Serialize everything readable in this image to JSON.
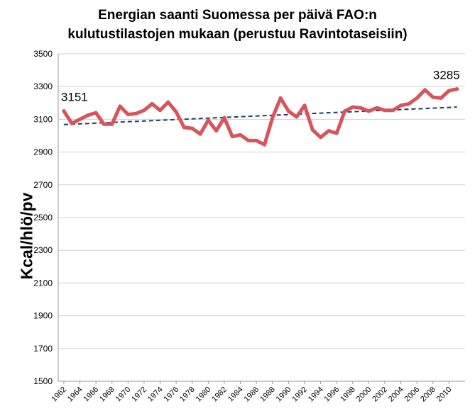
{
  "chart_data": {
    "type": "line",
    "title_lines": [
      "Energian saanti Suomessa per päivä FAO:n",
      "kulutustilastojen mukaan (perustuu Ravintotaseisiin)"
    ],
    "xlabel": "",
    "ylabel": "Kcal/hlö/pv",
    "ylim": [
      1500,
      3500
    ],
    "yticks": [
      1500,
      1700,
      1900,
      2100,
      2300,
      2500,
      2700,
      2900,
      3100,
      3300,
      3500
    ],
    "xticks": [
      1962,
      1964,
      1966,
      1968,
      1970,
      1972,
      1974,
      1976,
      1978,
      1980,
      1982,
      1984,
      1986,
      1988,
      1990,
      1992,
      1994,
      1996,
      1998,
      2000,
      2002,
      2004,
      2006,
      2008,
      2010
    ],
    "grid": true,
    "legend": "none",
    "series": [
      {
        "color": "#d9535c",
        "x": [
          1962,
          1963,
          1964,
          1965,
          1966,
          1967,
          1968,
          1969,
          1970,
          1971,
          1972,
          1973,
          1974,
          1975,
          1976,
          1977,
          1978,
          1979,
          1980,
          1981,
          1982,
          1983,
          1984,
          1985,
          1986,
          1987,
          1988,
          1989,
          1990,
          1991,
          1992,
          1993,
          1994,
          1995,
          1996,
          1997,
          1998,
          1999,
          2000,
          2001,
          2002,
          2003,
          2004,
          2005,
          2006,
          2007,
          2008,
          2009,
          2010,
          2011
        ],
        "values": [
          3151,
          3075,
          3100,
          3125,
          3140,
          3070,
          3070,
          3180,
          3130,
          3135,
          3155,
          3195,
          3155,
          3205,
          3145,
          3050,
          3045,
          3010,
          3095,
          3030,
          3110,
          2995,
          3005,
          2970,
          2970,
          2945,
          3110,
          3230,
          3150,
          3115,
          3185,
          3035,
          2990,
          3030,
          3015,
          3150,
          3175,
          3170,
          3150,
          3170,
          3155,
          3155,
          3185,
          3195,
          3230,
          3280,
          3235,
          3230,
          3275,
          3285
        ]
      }
    ],
    "trendline": {
      "style": "dashed",
      "color": "#1f3f66",
      "x": [
        1962,
        2011
      ],
      "values": [
        3068,
        3175
      ]
    },
    "annotations": [
      {
        "text": "3151",
        "x": 1962,
        "y": 3151
      },
      {
        "text": "3285",
        "x": 2011,
        "y": 3285
      }
    ]
  }
}
